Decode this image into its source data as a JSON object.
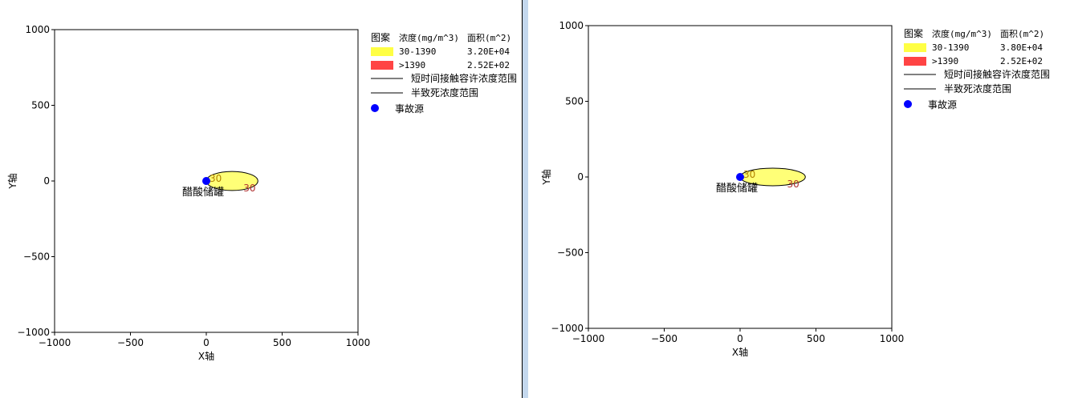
{
  "colors": {
    "band1": "#ffff44",
    "band2": "#ff4444",
    "source": "#0000ff",
    "ellipse_fill": "#ffff77"
  },
  "chart_data": [
    {
      "type": "contour",
      "xlabel": "X轴",
      "ylabel": "Y轴",
      "xlim": [
        -1000,
        1000
      ],
      "ylim": [
        -1000,
        1000
      ],
      "xticks": [
        "-1000",
        "-500",
        "0",
        "500",
        "1000"
      ],
      "yticks": [
        "-1000",
        "-500",
        "0",
        "500",
        "1000"
      ],
      "source": {
        "x": 0,
        "y": 0,
        "label": "醋酸储罐"
      },
      "plume": {
        "x_start": 0,
        "x_end": 340,
        "half_width": 63,
        "contour_label": "30"
      },
      "legend": {
        "header": [
          "图案",
          "浓度(mg/m^3)",
          "面积(m^2)"
        ],
        "rows": [
          {
            "range": "30-1390",
            "area": "3.20E+04",
            "color": "#ffff44"
          },
          {
            "range": ">1390",
            "area": "2.52E+02",
            "color": "#ff4444"
          }
        ],
        "lines": [
          "短时间接触容许浓度范围",
          "半致死浓度范围"
        ],
        "point": "事故源"
      }
    },
    {
      "type": "contour",
      "xlabel": "X轴",
      "ylabel": "Y轴",
      "xlim": [
        -1000,
        1000
      ],
      "ylim": [
        -1000,
        1000
      ],
      "xticks": [
        "-1000",
        "-500",
        "0",
        "500",
        "1000"
      ],
      "yticks": [
        "-1000",
        "-500",
        "0",
        "500",
        "1000"
      ],
      "source": {
        "x": 0,
        "y": 0,
        "label": "醋酸储罐"
      },
      "plume": {
        "x_start": 0,
        "x_end": 430,
        "half_width": 58,
        "contour_label": "30"
      },
      "legend": {
        "header": [
          "图案",
          "浓度(mg/m^3)",
          "面积(m^2)"
        ],
        "rows": [
          {
            "range": "30-1390",
            "area": "3.80E+04",
            "color": "#ffff44"
          },
          {
            "range": ">1390",
            "area": "2.52E+02",
            "color": "#ff4444"
          }
        ],
        "lines": [
          "短时间接触容许浓度范围",
          "半致死浓度范围"
        ],
        "point": "事故源"
      }
    }
  ]
}
